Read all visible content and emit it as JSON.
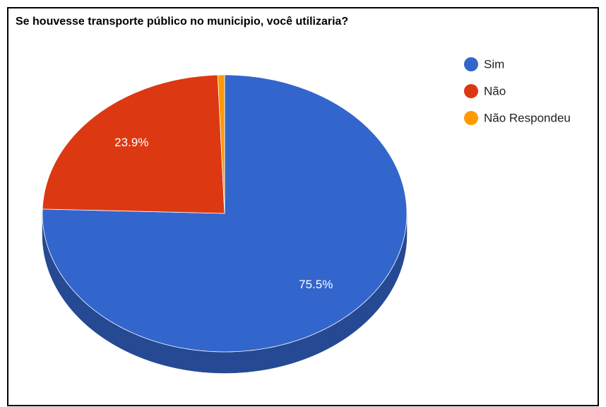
{
  "chart_data": {
    "type": "pie",
    "title": "Se houvesse transporte público no municipio, você utilizaria?",
    "categories": [
      "Sim",
      "Não",
      "Não Respondeu"
    ],
    "values": [
      75.5,
      23.9,
      0.6
    ],
    "value_labels": [
      "75.5%",
      "23.9%",
      null
    ],
    "colors": [
      "#3366cc",
      "#dc3912",
      "#ff9900"
    ],
    "legend": "right",
    "three_d": true
  }
}
